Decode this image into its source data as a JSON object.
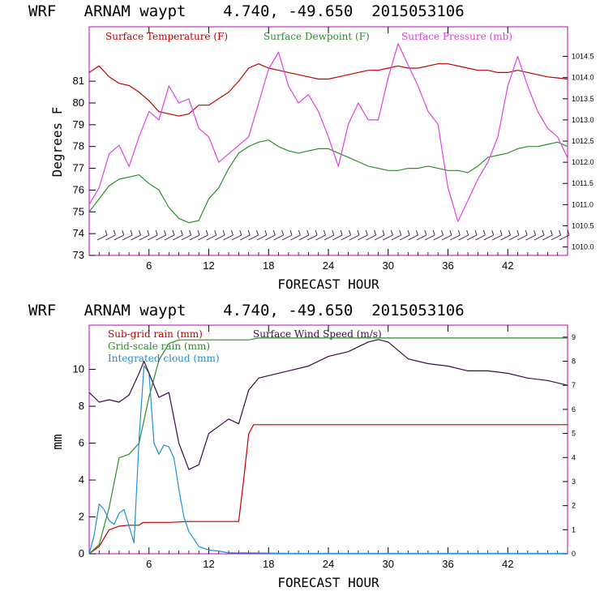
{
  "colors": {
    "temperature": "#c00000",
    "dewpoint": "#2e8b2e",
    "pressure": "#e040e0",
    "wind": "#3a0a4a",
    "subgrid_rain": "#c00000",
    "gridscale_rain": "#2e8b2e",
    "cloud": "#1e90d8",
    "frame": "#c000c0"
  },
  "chart_data": [
    {
      "type": "line",
      "title": "WRF   ARNAM waypt    4.740, -49.650  2015053106",
      "xlabel": "FORECAST HOUR",
      "ylabel": "Degrees F",
      "xlim": [
        0,
        48
      ],
      "ylim": [
        73,
        83.5
      ],
      "y2lim": [
        1009.8,
        1015.2
      ],
      "xticks": [
        "6",
        "12",
        "18",
        "24",
        "30",
        "36",
        "42"
      ],
      "yticks": [
        "73",
        "74",
        "75",
        "76",
        "77",
        "78",
        "79",
        "80",
        "81"
      ],
      "y2ticks": [
        "1010.0",
        "1010.5",
        "1011.0",
        "1011.5",
        "1012.0",
        "1012.5",
        "1013.0",
        "1013.5",
        "1014.0",
        "1014.5"
      ],
      "series": [
        {
          "name": "Surface Temperature (F)",
          "axis": "left",
          "x": [
            0,
            1,
            2,
            3,
            4,
            5,
            6,
            7,
            8,
            9,
            10,
            11,
            12,
            13,
            14,
            15,
            16,
            17,
            18,
            19,
            20,
            21,
            22,
            23,
            24,
            25,
            26,
            27,
            28,
            29,
            30,
            31,
            32,
            33,
            34,
            35,
            36,
            37,
            38,
            39,
            40,
            41,
            42,
            43,
            44,
            45,
            46,
            47,
            48
          ],
          "y": [
            81.4,
            81.7,
            81.2,
            80.9,
            80.8,
            80.5,
            80.1,
            79.6,
            79.5,
            79.4,
            79.5,
            79.9,
            79.9,
            80.2,
            80.5,
            81.0,
            81.6,
            81.8,
            81.6,
            81.5,
            81.4,
            81.3,
            81.2,
            81.1,
            81.1,
            81.2,
            81.3,
            81.4,
            81.5,
            81.5,
            81.6,
            81.7,
            81.6,
            81.6,
            81.7,
            81.8,
            81.8,
            81.7,
            81.6,
            81.5,
            81.5,
            81.4,
            81.4,
            81.5,
            81.4,
            81.3,
            81.2,
            81.15,
            81.1
          ]
        },
        {
          "name": "Surface Dewpoint (F)",
          "axis": "left",
          "x": [
            0,
            1,
            2,
            3,
            4,
            5,
            6,
            7,
            8,
            9,
            10,
            11,
            12,
            13,
            14,
            15,
            16,
            17,
            18,
            19,
            20,
            21,
            22,
            23,
            24,
            25,
            26,
            27,
            28,
            29,
            30,
            31,
            32,
            33,
            34,
            35,
            36,
            37,
            38,
            39,
            40,
            41,
            42,
            43,
            44,
            45,
            46,
            47,
            48
          ],
          "y": [
            75.0,
            75.6,
            76.2,
            76.5,
            76.6,
            76.7,
            76.3,
            76.0,
            75.2,
            74.7,
            74.5,
            74.6,
            75.6,
            76.1,
            77.0,
            77.7,
            78.0,
            78.2,
            78.3,
            78.0,
            77.8,
            77.7,
            77.8,
            77.9,
            77.9,
            77.7,
            77.5,
            77.3,
            77.1,
            77.0,
            76.9,
            76.9,
            77.0,
            77.0,
            77.1,
            77.0,
            76.9,
            76.9,
            76.8,
            77.1,
            77.5,
            77.6,
            77.7,
            77.9,
            78.0,
            78.0,
            78.1,
            78.2,
            78.0
          ]
        },
        {
          "name": "Surface Pressure (mb)",
          "axis": "right",
          "x": [
            0,
            1,
            2,
            3,
            4,
            5,
            6,
            7,
            8,
            9,
            10,
            11,
            12,
            13,
            14,
            15,
            16,
            17,
            18,
            19,
            20,
            21,
            22,
            23,
            24,
            25,
            26,
            27,
            28,
            29,
            30,
            31,
            32,
            33,
            34,
            35,
            36,
            37,
            38,
            39,
            40,
            41,
            42,
            43,
            44,
            45,
            46,
            47,
            48
          ],
          "y": [
            1011.0,
            1011.4,
            1012.2,
            1012.4,
            1011.9,
            1012.6,
            1013.2,
            1013.0,
            1013.8,
            1013.4,
            1013.5,
            1012.8,
            1012.6,
            1012.0,
            1012.2,
            1012.4,
            1012.6,
            1013.4,
            1014.2,
            1014.6,
            1013.8,
            1013.4,
            1013.6,
            1013.2,
            1012.6,
            1011.9,
            1012.9,
            1013.4,
            1013.0,
            1013.0,
            1014.0,
            1014.8,
            1014.3,
            1013.8,
            1013.2,
            1012.9,
            1011.4,
            1010.6,
            1011.1,
            1011.6,
            1012.0,
            1012.6,
            1013.8,
            1014.5,
            1013.8,
            1013.2,
            1012.8,
            1012.6,
            1012.1
          ]
        }
      ]
    },
    {
      "type": "line",
      "title": "WRF   ARNAM waypt    4.740, -49.650  2015053106",
      "xlabel": "FORECAST HOUR",
      "ylabel": "mm",
      "xlim": [
        0,
        48
      ],
      "ylim": [
        0,
        12.4
      ],
      "y2lim": [
        0,
        9.5
      ],
      "xticks": [
        "6",
        "12",
        "18",
        "24",
        "30",
        "36",
        "42"
      ],
      "yticks": [
        "0",
        "2",
        "4",
        "6",
        "8",
        "10"
      ],
      "y2ticks": [
        "0",
        "1",
        "2",
        "3",
        "4",
        "5",
        "6",
        "7",
        "8",
        "9"
      ],
      "series": [
        {
          "name": "Sub-grid rain (mm)",
          "axis": "left",
          "x": [
            0,
            1,
            2,
            3,
            4,
            5,
            5.4,
            6,
            8,
            10,
            12,
            14,
            15,
            15.5,
            16,
            16.5,
            18,
            24,
            30,
            36,
            42,
            48
          ],
          "y": [
            0,
            0.4,
            1.3,
            1.5,
            1.55,
            1.55,
            1.7,
            1.7,
            1.7,
            1.75,
            1.75,
            1.75,
            1.75,
            4.0,
            6.5,
            7.0,
            7.0,
            7.0,
            7.0,
            7.0,
            7.0,
            7.0
          ]
        },
        {
          "name": "Grid-scale rain (mm)",
          "axis": "left",
          "x": [
            0,
            1,
            2,
            3,
            4,
            5,
            6,
            7,
            8,
            9,
            10,
            12,
            16,
            17,
            20,
            30,
            40,
            48
          ],
          "y": [
            0,
            0.5,
            2.5,
            5.2,
            5.4,
            6.0,
            8.5,
            10.5,
            11.4,
            11.6,
            11.6,
            11.6,
            11.6,
            11.7,
            11.7,
            11.7,
            11.7,
            11.7
          ]
        },
        {
          "name": "Integrated cloud (mm)",
          "axis": "left",
          "x": [
            0,
            0.5,
            1,
            1.5,
            2,
            2.5,
            3,
            3.5,
            4,
            4.5,
            5,
            5.5,
            6,
            6.5,
            7,
            7.5,
            8,
            8.5,
            9,
            9.5,
            10,
            11,
            12,
            13,
            14,
            16,
            20,
            30,
            40,
            48
          ],
          "y": [
            0,
            1.0,
            2.7,
            2.4,
            1.8,
            1.6,
            2.2,
            2.4,
            1.5,
            0.6,
            6.2,
            10.2,
            9.8,
            6.0,
            5.4,
            5.9,
            5.8,
            5.2,
            3.5,
            2.0,
            1.2,
            0.4,
            0.2,
            0.15,
            0.05,
            0.05,
            0.02,
            0.02,
            0.02,
            0.02
          ]
        },
        {
          "name": "Surface Wind Speed (m/s)",
          "axis": "right",
          "x": [
            0,
            1,
            2,
            3,
            4,
            5,
            5.5,
            6,
            7,
            8,
            9,
            10,
            11,
            12,
            13,
            14,
            15,
            16,
            17,
            18,
            20,
            22,
            24,
            26,
            28,
            29,
            30,
            32,
            34,
            36,
            38,
            40,
            42,
            44,
            46,
            48
          ],
          "y": [
            6.7,
            6.3,
            6.4,
            6.3,
            6.6,
            7.5,
            8.0,
            7.5,
            6.5,
            6.7,
            4.6,
            3.5,
            3.7,
            5.0,
            5.3,
            5.6,
            5.4,
            6.8,
            7.3,
            7.4,
            7.6,
            7.8,
            8.2,
            8.4,
            8.8,
            8.9,
            8.8,
            8.1,
            7.9,
            7.8,
            7.6,
            7.6,
            7.5,
            7.3,
            7.2,
            7.0
          ]
        }
      ]
    }
  ]
}
